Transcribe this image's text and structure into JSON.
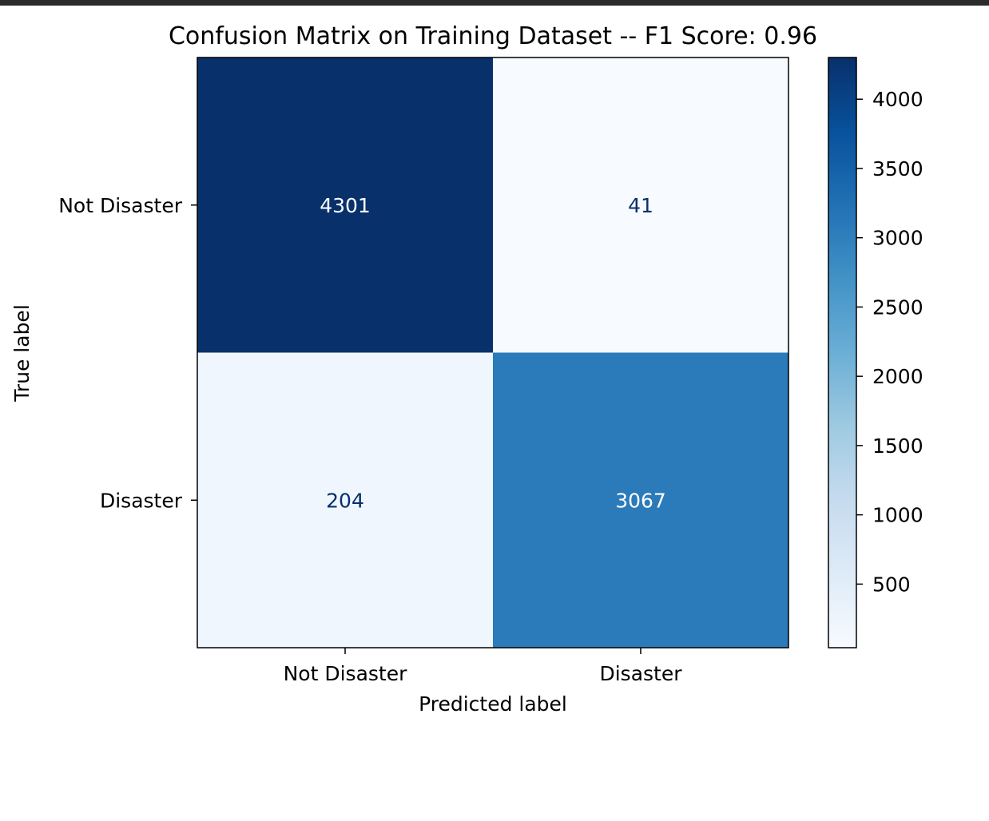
{
  "chart_data": {
    "type": "heatmap",
    "title": "Confusion Matrix on Training Dataset -- F1 Score: 0.96",
    "xlabel": "Predicted label",
    "ylabel": "True label",
    "x_categories": [
      "Not Disaster",
      "Disaster"
    ],
    "y_categories": [
      "Not Disaster",
      "Disaster"
    ],
    "values": [
      [
        4301,
        41
      ],
      [
        204,
        3067
      ]
    ],
    "colormap": "Blues",
    "color_range": [
      41,
      4301
    ],
    "colorbar_ticks": [
      500,
      1000,
      1500,
      2000,
      2500,
      3000,
      3500,
      4000
    ],
    "text_color_light": "#ffffff",
    "text_color_dark": "#08306b"
  }
}
